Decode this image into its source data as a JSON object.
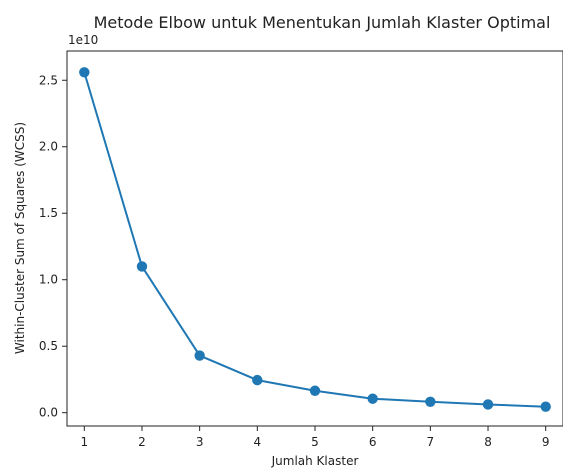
{
  "chart_data": {
    "type": "line",
    "title": "Metode Elbow untuk Menentukan Jumlah Klaster Optimal",
    "xlabel": "Jumlah Klaster",
    "ylabel": "Within-Cluster Sum of Squares (WCSS)",
    "y_offset_label": "1e10",
    "x": [
      1,
      2,
      3,
      4,
      5,
      6,
      7,
      8,
      9
    ],
    "x_tick_labels": [
      "1",
      "2",
      "3",
      "4",
      "5",
      "6",
      "7",
      "8",
      "9"
    ],
    "y_ticks": [
      0.0,
      0.5,
      1.0,
      1.5,
      2.0,
      2.5
    ],
    "y_tick_labels": [
      "0.0",
      "0.5",
      "1.0",
      "1.5",
      "2.0",
      "2.5"
    ],
    "series": [
      {
        "values": [
          25600000000,
          11000000000,
          4300000000,
          2450000000,
          1650000000,
          1050000000,
          820000000,
          620000000,
          450000000
        ]
      }
    ],
    "xlim": [
      0.7,
      9.3
    ],
    "ylim": [
      -1000000000,
      27200000000
    ],
    "grid": false,
    "marker": "circle",
    "line_color": "#1f77b4"
  }
}
